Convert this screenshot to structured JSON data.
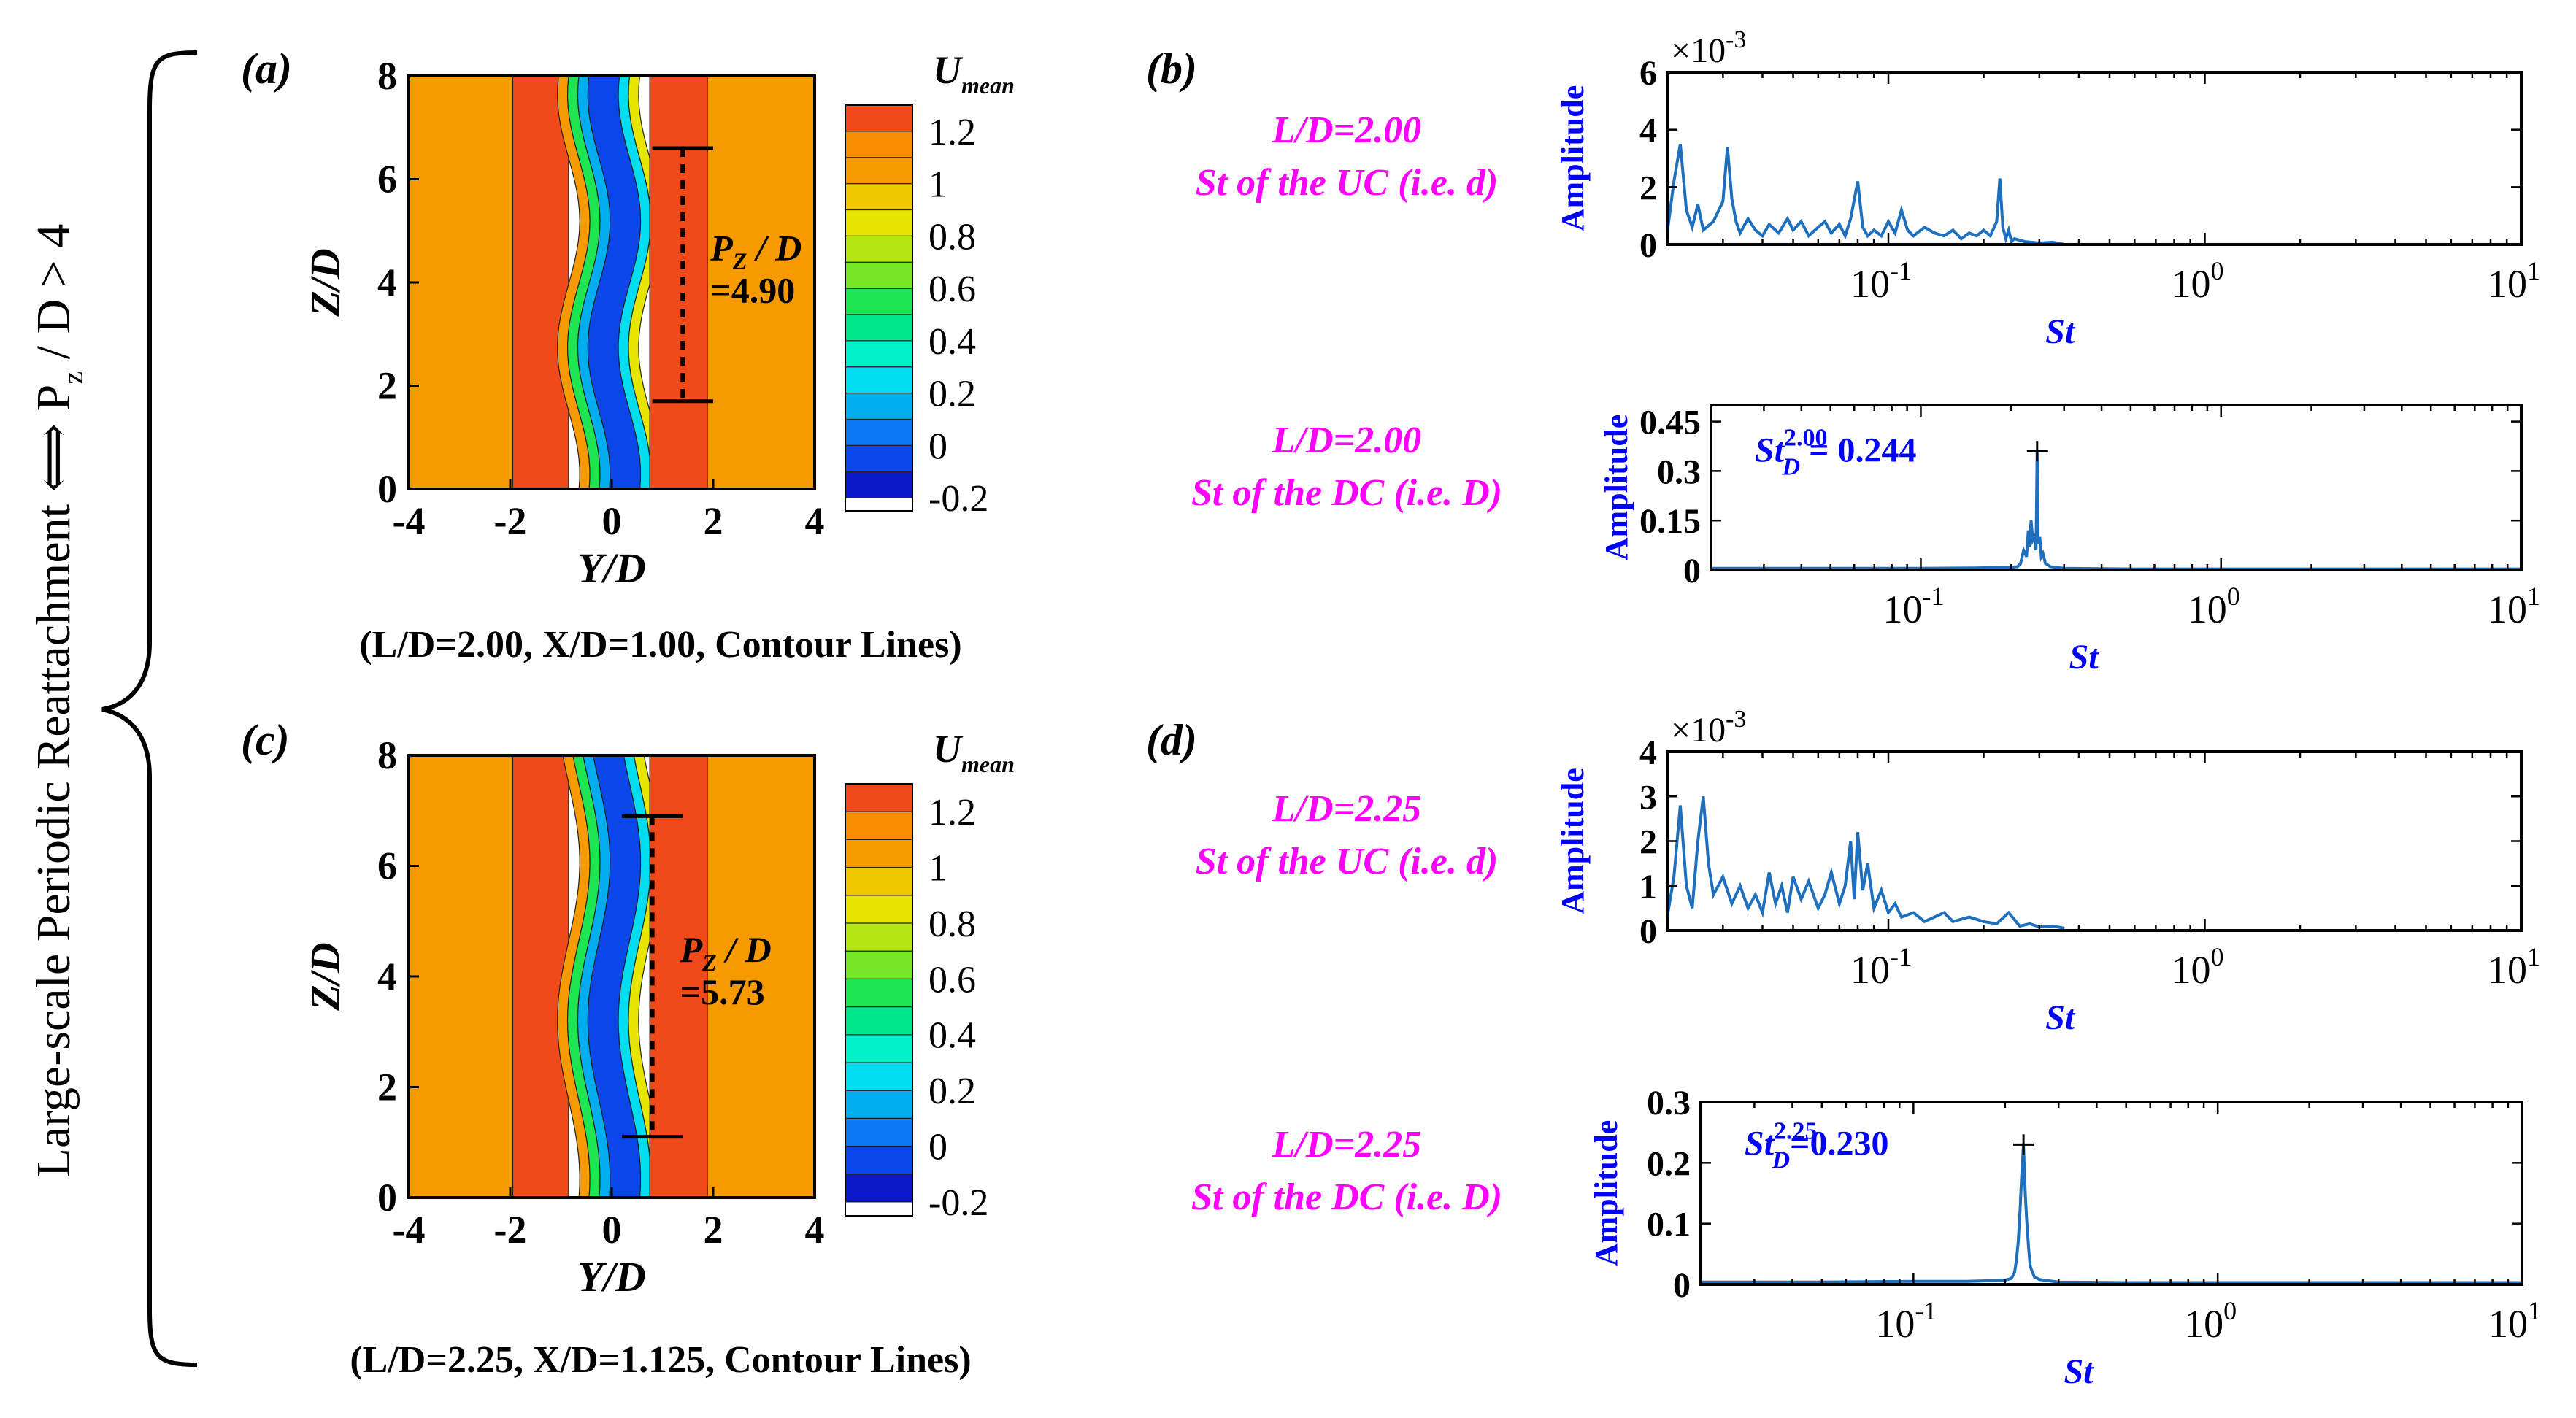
{
  "side_label": {
    "text_main": "Large-scale Periodic  Reattachment ⟺ P",
    "text_sub": "z",
    "text_tail": " / D > 4"
  },
  "colors": {
    "magenta": "#ff00ff",
    "blue_text": "#0000ff",
    "line_blue": "#1f6fbf",
    "axis_blue": "#1f5fbf",
    "orange": "#f78f00",
    "red": "#f04a1a",
    "blue_core": "#0a46e8"
  },
  "colorbar": {
    "title_main": "U",
    "title_sub": "mean",
    "ticks": [
      "1.2",
      "1",
      "0.8",
      "0.6",
      "0.4",
      "0.2",
      "0",
      "-0.2"
    ],
    "levels": [
      -0.2,
      -0.1,
      0,
      0.1,
      0.2,
      0.3,
      0.4,
      0.5,
      0.6,
      0.7,
      0.8,
      0.9,
      1.0,
      1.1,
      1.2,
      1.3
    ],
    "level_colors": [
      "#0a18c8",
      "#0a46e8",
      "#0a78f0",
      "#00aef0",
      "#00dcf0",
      "#00f0c8",
      "#00e68c",
      "#1ee650",
      "#78e628",
      "#b4e614",
      "#e6e600",
      "#f0c800",
      "#f79a00",
      "#f78f00",
      "#f04a1a",
      "#e61414"
    ]
  },
  "chart_data": [
    {
      "id": "a",
      "panel_label": "(a)",
      "type": "heatmap",
      "title": "(L/D=2.00, X/D=1.00, Contour Lines)",
      "xlabel": "Y/D",
      "ylabel": "Z/D",
      "xlim": [
        -4,
        4
      ],
      "ylim": [
        0,
        8
      ],
      "xticks": [
        "-4",
        "-2",
        "0",
        "2",
        "4"
      ],
      "yticks": [
        "0",
        "2",
        "4",
        "6",
        "8"
      ],
      "xtick_values": [
        -4,
        -2,
        0,
        2,
        4
      ],
      "ytick_values": [
        0,
        2,
        4,
        6,
        8
      ],
      "annotation_line1": "P",
      "annotation_sub": "Z",
      "annotation_line1_tail": " / D",
      "annotation_line2": "=4.90",
      "period_marker": {
        "y": 1.4,
        "z_top": 6.6,
        "z_bottom": 1.7,
        "half_width": 0.6
      }
    },
    {
      "id": "c",
      "panel_label": "(c)",
      "type": "heatmap",
      "title": "(L/D=2.25, X/D=1.125, Contour Lines)",
      "xlabel": "Y/D",
      "ylabel": "Z/D",
      "xlim": [
        -4,
        4
      ],
      "ylim": [
        0,
        8
      ],
      "xticks": [
        "-4",
        "-2",
        "0",
        "2",
        "4"
      ],
      "yticks": [
        "0",
        "2",
        "4",
        "6",
        "8"
      ],
      "xtick_values": [
        -4,
        -2,
        0,
        2,
        4
      ],
      "ytick_values": [
        0,
        2,
        4,
        6,
        8
      ],
      "annotation_line1": "P",
      "annotation_sub": "Z",
      "annotation_line1_tail": " / D",
      "annotation_line2": "=5.73",
      "period_marker": {
        "y": 0.8,
        "z_top": 6.9,
        "z_bottom": 1.1,
        "half_width": 0.6
      }
    },
    {
      "id": "b1",
      "panel_label": "(b)",
      "type": "line",
      "label_line1": "L/D=2.00",
      "label_line2": "St of the UC (i.e. d)",
      "xlabel": "St",
      "ylabel": "Amplitude",
      "xscale": "log",
      "xlim": [
        0.02,
        10
      ],
      "ylim": [
        0,
        6
      ],
      "yticks": [
        "0",
        "2",
        "4",
        "6"
      ],
      "ytick_values": [
        0,
        2,
        4,
        6
      ],
      "exponent": "×10",
      "exponent_power": "-3",
      "series": [
        {
          "name": "UC spectrum",
          "x": [
            0.02,
            0.021,
            0.022,
            0.023,
            0.024,
            0.025,
            0.026,
            0.028,
            0.03,
            0.031,
            0.032,
            0.033,
            0.034,
            0.036,
            0.038,
            0.04,
            0.042,
            0.045,
            0.048,
            0.05,
            0.053,
            0.056,
            0.06,
            0.063,
            0.066,
            0.07,
            0.073,
            0.076,
            0.08,
            0.083,
            0.086,
            0.09,
            0.095,
            0.1,
            0.105,
            0.11,
            0.115,
            0.12,
            0.13,
            0.14,
            0.15,
            0.16,
            0.17,
            0.18,
            0.19,
            0.2,
            0.21,
            0.22,
            0.225,
            0.23,
            0.235,
            0.24,
            0.245,
            0.25,
            0.27,
            0.3,
            0.33,
            0.36
          ],
          "y": [
            0.4,
            2.2,
            3.5,
            1.2,
            0.6,
            1.4,
            0.5,
            0.8,
            1.5,
            3.4,
            1.6,
            0.8,
            0.4,
            0.9,
            0.5,
            0.3,
            0.7,
            0.4,
            0.9,
            0.5,
            0.8,
            0.3,
            0.6,
            0.8,
            0.4,
            0.7,
            0.3,
            0.9,
            2.2,
            0.6,
            0.3,
            0.5,
            0.3,
            0.8,
            0.4,
            1.2,
            0.5,
            0.3,
            0.6,
            0.4,
            0.3,
            0.5,
            0.2,
            0.4,
            0.3,
            0.5,
            0.3,
            0.8,
            2.3,
            0.6,
            0.2,
            0.5,
            0.1,
            0.2,
            0.1,
            0.05,
            0.08,
            0.0
          ]
        }
      ]
    },
    {
      "id": "b2",
      "type": "line",
      "label_line1": "L/D=2.00",
      "label_line2": "St of the DC (i.e. D)",
      "xlabel": "St",
      "ylabel": "Amplitude",
      "xscale": "log",
      "xlim": [
        0.02,
        10
      ],
      "ylim": [
        0,
        0.5
      ],
      "yticks": [
        "0",
        "0.15",
        "0.3",
        "0.45"
      ],
      "ytick_values": [
        0,
        0.15,
        0.3,
        0.45
      ],
      "annotation": {
        "prefix": "St",
        "sup": "2.00",
        "sub": "D",
        "value": " = 0.244"
      },
      "peak": {
        "x": 0.244,
        "y": 0.36
      },
      "series": [
        {
          "name": "DC spectrum",
          "x": [
            0.02,
            0.05,
            0.1,
            0.15,
            0.2,
            0.21,
            0.215,
            0.22,
            0.225,
            0.228,
            0.23,
            0.233,
            0.236,
            0.239,
            0.242,
            0.244,
            0.246,
            0.249,
            0.252,
            0.255,
            0.26,
            0.27,
            0.3,
            0.5,
            1,
            2,
            5,
            10
          ],
          "y": [
            0.005,
            0.005,
            0.005,
            0.006,
            0.008,
            0.01,
            0.02,
            0.06,
            0.04,
            0.12,
            0.07,
            0.15,
            0.09,
            0.1,
            0.06,
            0.36,
            0.08,
            0.1,
            0.04,
            0.05,
            0.02,
            0.01,
            0.005,
            0.003,
            0.003,
            0.003,
            0.003,
            0.003
          ]
        }
      ]
    },
    {
      "id": "d1",
      "panel_label": "(d)",
      "type": "line",
      "label_line1": "L/D=2.25",
      "label_line2": "St of the UC (i.e. d)",
      "xlabel": "St",
      "ylabel": "Amplitude",
      "xscale": "log",
      "xlim": [
        0.02,
        10
      ],
      "ylim": [
        0,
        4
      ],
      "yticks": [
        "0",
        "1",
        "2",
        "3",
        "4"
      ],
      "ytick_values": [
        0,
        1,
        2,
        3,
        4
      ],
      "exponent": "×10",
      "exponent_power": "-3",
      "series": [
        {
          "name": "UC spectrum",
          "x": [
            0.02,
            0.021,
            0.022,
            0.023,
            0.024,
            0.025,
            0.026,
            0.027,
            0.028,
            0.03,
            0.032,
            0.034,
            0.036,
            0.038,
            0.04,
            0.042,
            0.044,
            0.046,
            0.048,
            0.05,
            0.053,
            0.056,
            0.06,
            0.063,
            0.066,
            0.07,
            0.073,
            0.076,
            0.078,
            0.08,
            0.083,
            0.086,
            0.09,
            0.095,
            0.1,
            0.105,
            0.11,
            0.12,
            0.13,
            0.14,
            0.15,
            0.16,
            0.18,
            0.2,
            0.22,
            0.24,
            0.26,
            0.28,
            0.3,
            0.33,
            0.36
          ],
          "y": [
            0.3,
            1.2,
            2.8,
            1.0,
            0.5,
            2.0,
            3.0,
            1.5,
            0.8,
            1.2,
            0.6,
            1.0,
            0.5,
            0.8,
            0.4,
            1.3,
            0.6,
            1.0,
            0.4,
            1.2,
            0.7,
            1.1,
            0.5,
            0.8,
            1.3,
            0.6,
            1.0,
            2.0,
            0.7,
            2.2,
            0.9,
            1.5,
            0.5,
            0.9,
            0.4,
            0.6,
            0.3,
            0.4,
            0.2,
            0.3,
            0.4,
            0.2,
            0.3,
            0.2,
            0.15,
            0.4,
            0.1,
            0.15,
            0.08,
            0.1,
            0.05
          ]
        }
      ]
    },
    {
      "id": "d2",
      "type": "line",
      "label_line1": "L/D=2.25",
      "label_line2": "St of the DC (i.e. D)",
      "xlabel": "St",
      "ylabel": "Amplitude",
      "xscale": "log",
      "xlim": [
        0.02,
        10
      ],
      "ylim": [
        0,
        0.3
      ],
      "yticks": [
        "0",
        "0.1",
        "0.2",
        "0.3"
      ],
      "ytick_values": [
        0,
        0.1,
        0.2,
        0.3
      ],
      "annotation": {
        "prefix": "St",
        "sup": "2.25",
        "sub": "D",
        "value": "=0.230"
      },
      "peak": {
        "x": 0.23,
        "y": 0.23
      },
      "series": [
        {
          "name": "DC spectrum",
          "x": [
            0.02,
            0.05,
            0.1,
            0.15,
            0.2,
            0.21,
            0.215,
            0.218,
            0.221,
            0.224,
            0.227,
            0.23,
            0.233,
            0.236,
            0.239,
            0.242,
            0.246,
            0.25,
            0.26,
            0.3,
            0.5,
            1,
            2,
            5,
            10
          ],
          "y": [
            0.004,
            0.004,
            0.005,
            0.005,
            0.007,
            0.01,
            0.02,
            0.04,
            0.07,
            0.12,
            0.18,
            0.23,
            0.15,
            0.1,
            0.06,
            0.03,
            0.02,
            0.012,
            0.008,
            0.004,
            0.003,
            0.003,
            0.003,
            0.003,
            0.003
          ]
        }
      ]
    }
  ]
}
